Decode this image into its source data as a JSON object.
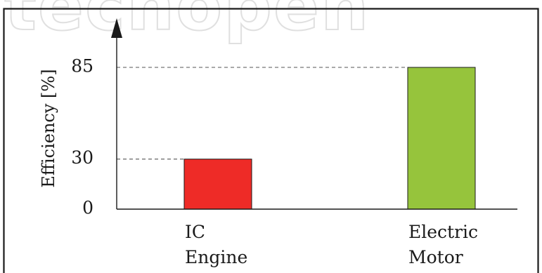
{
  "watermark": "techopen",
  "chart_data": {
    "type": "bar",
    "title": "",
    "xlabel": "",
    "ylabel": "Efficiency [%]",
    "categories": [
      [
        "IC",
        "Engine"
      ],
      [
        "Electric",
        "Motor"
      ]
    ],
    "values": [
      30,
      85
    ],
    "bar_colors": [
      "#ee2b27",
      "#96c43c"
    ],
    "yticks": [
      0,
      30,
      85
    ],
    "ylim": [
      0,
      100
    ],
    "reference_lines": "dashed at 30 and 85",
    "grid": false,
    "legend": "none"
  }
}
